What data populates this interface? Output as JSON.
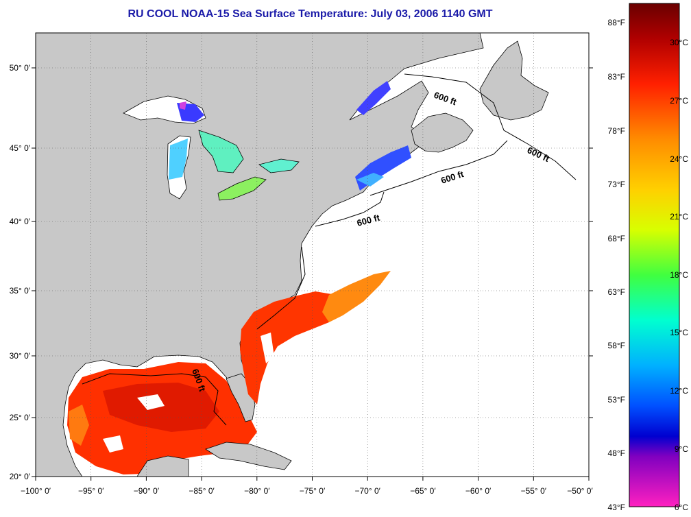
{
  "title": "RU COOL  NOAA-15  Sea Surface Temperature:  July 03, 2006 1140 GMT",
  "map": {
    "lon_range": [
      -100,
      -50
    ],
    "lat_range": [
      20,
      52.3
    ],
    "lon_ticks": [
      "−100° 0′",
      "−95° 0′",
      "−90° 0′",
      "−85° 0′",
      "−80° 0′",
      "−75° 0′",
      "−70° 0′",
      "−65° 0′",
      "−60° 0′",
      "−55° 0′",
      "−50° 0′"
    ],
    "lat_ticks": [
      "20° 0′",
      "25° 0′",
      "30° 0′",
      "35° 0′",
      "40° 0′",
      "45° 0′",
      "50° 0′"
    ],
    "contour_labels": [
      "600 ft",
      "600 ft",
      "600 ft",
      "600 ft",
      "600 ft"
    ],
    "land_color": "#c8c8c8",
    "grid": "dotted"
  },
  "colorbar": {
    "fahrenheit": [
      "88°F",
      "83°F",
      "78°F",
      "73°F",
      "68°F",
      "63°F",
      "58°F",
      "53°F",
      "48°F",
      "43°F"
    ],
    "celsius": [
      "30°C",
      "27°C",
      "24°C",
      "21°C",
      "18°C",
      "15°C",
      "12°C",
      "9°C",
      "6°C"
    ]
  }
}
